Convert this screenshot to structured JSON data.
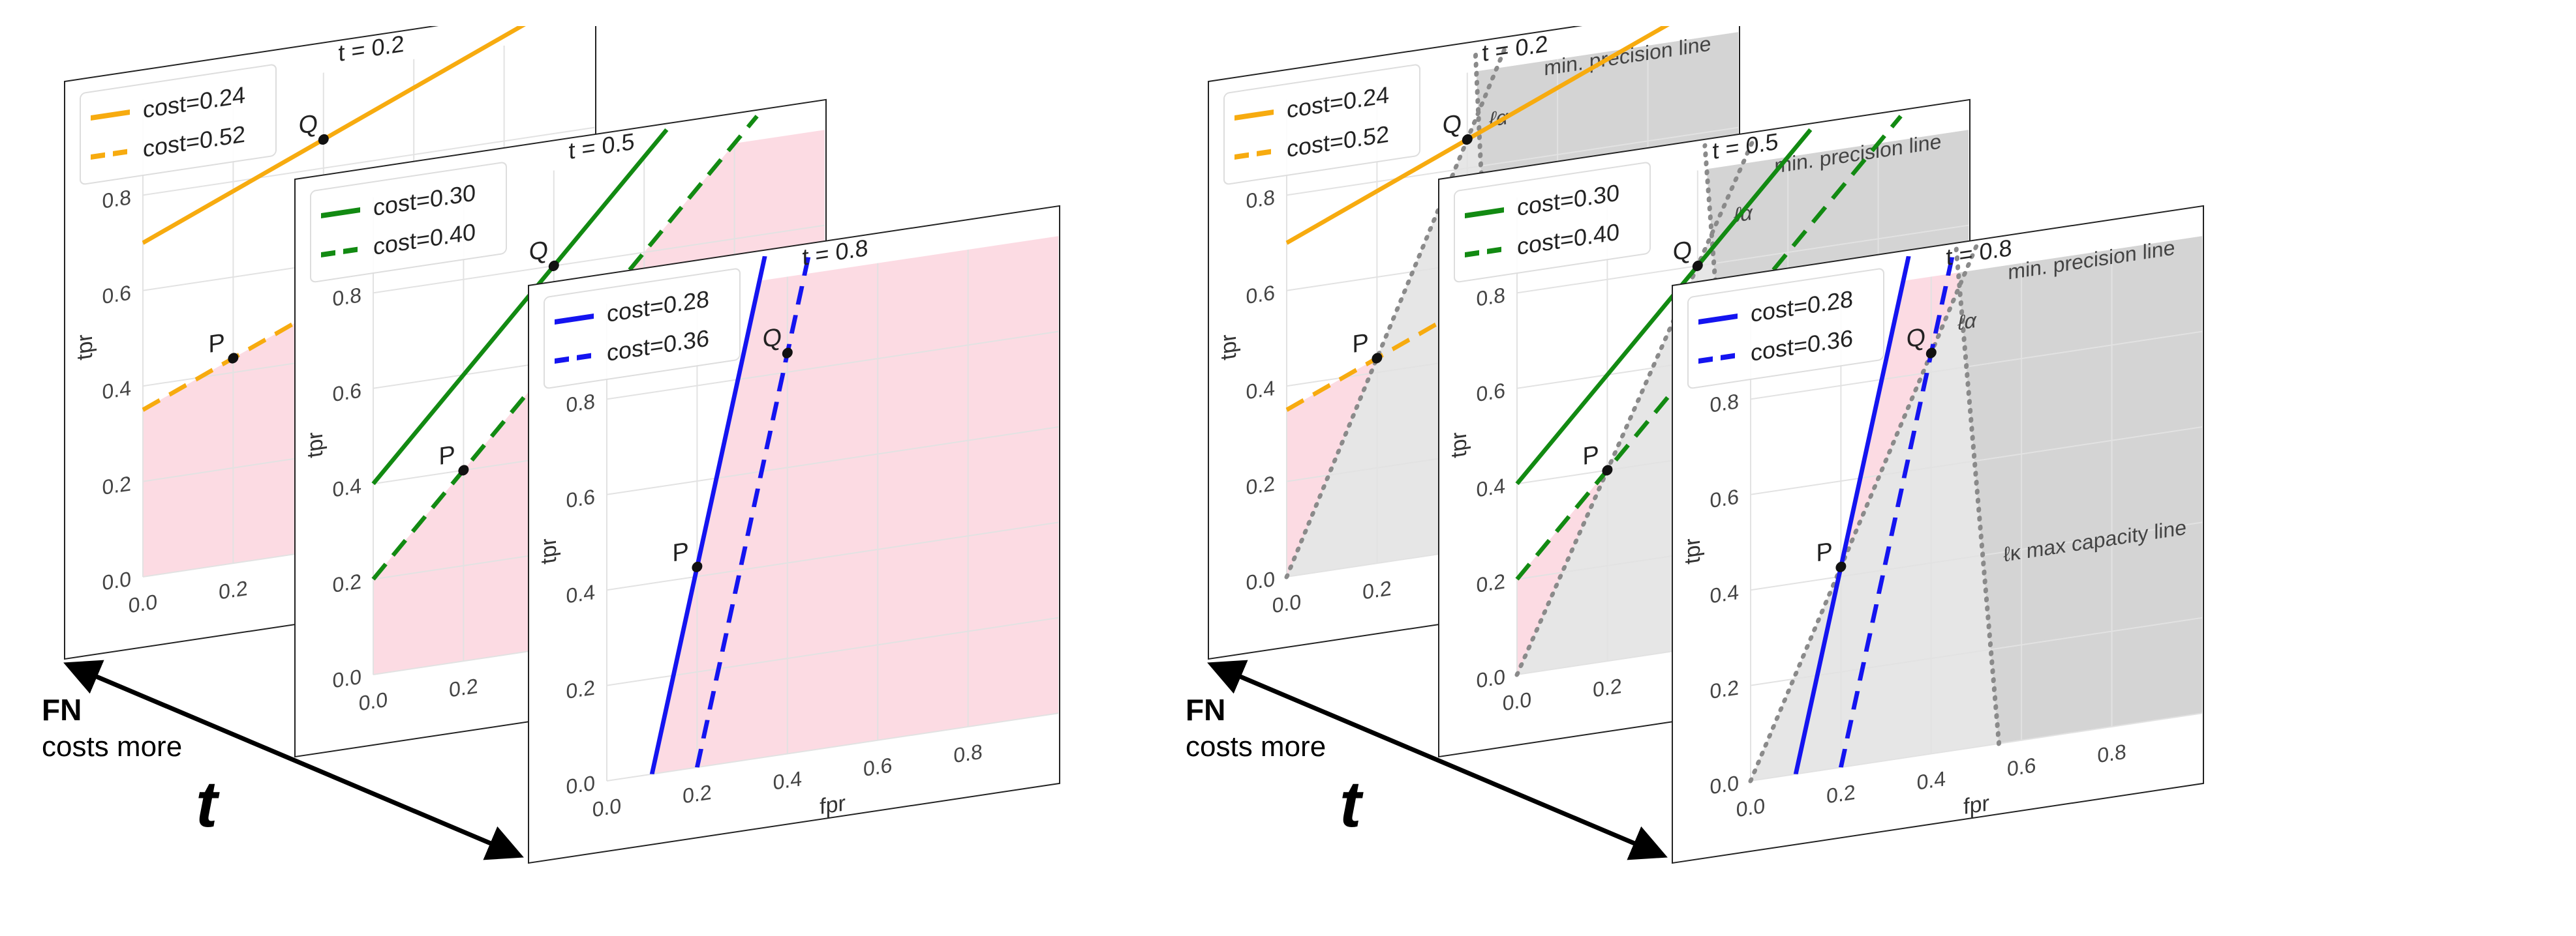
{
  "axis": {
    "xlabel": "fpr",
    "ylabel": "tpr",
    "ticks": [
      "0.0",
      "0.2",
      "0.4",
      "0.6",
      "0.8"
    ],
    "tick_values": [
      0,
      0.2,
      0.4,
      0.6,
      0.8
    ]
  },
  "annotations": {
    "fn": "FN",
    "costs_more": "costs more",
    "t": "t"
  },
  "colors": {
    "pink": "#fcdbe3",
    "gray_light": "#e6e6e6",
    "gray_dark": "#d4d4d4",
    "dotted": "#8a8a8a"
  },
  "figures": [
    {
      "name": "cost-lines",
      "panels": [
        {
          "title": "t = 0.2",
          "color": "#f7ab0f",
          "lines": [
            {
              "label": "cost=0.24",
              "style": "solid",
              "slope": 0.4,
              "intercept": 0.7
            },
            {
              "label": "cost=0.52",
              "style": "dashed",
              "slope": 0.4,
              "intercept": 0.35
            }
          ],
          "feasible_line": 1,
          "points": [
            {
              "label": "P",
              "fpr": 0.2,
              "tpr": 0.43
            },
            {
              "label": "Q",
              "fpr": 0.4,
              "tpr": 0.86
            }
          ]
        },
        {
          "title": "t = 0.5",
          "color": "#128a12",
          "lines": [
            {
              "label": "cost=0.30",
              "style": "solid",
              "slope": 1.0,
              "intercept": 0.4
            },
            {
              "label": "cost=0.40",
              "style": "dashed",
              "slope": 1.0,
              "intercept": 0.2
            }
          ],
          "feasible_line": 1,
          "points": [
            {
              "label": "P",
              "fpr": 0.2,
              "tpr": 0.4
            },
            {
              "label": "Q",
              "fpr": 0.4,
              "tpr": 0.8
            }
          ]
        },
        {
          "title": "t = 0.8",
          "color": "#1414f0",
          "lines": [
            {
              "label": "cost=0.28",
              "style": "solid",
              "slope": 4.2,
              "intercept": -0.42
            },
            {
              "label": "cost=0.36",
              "style": "dashed",
              "slope": 4.2,
              "intercept": -0.84
            }
          ],
          "feasible_line": 0,
          "points": [
            {
              "label": "P",
              "fpr": 0.2,
              "tpr": 0.42
            },
            {
              "label": "Q",
              "fpr": 0.4,
              "tpr": 0.84
            }
          ]
        }
      ]
    },
    {
      "name": "constrained",
      "panels": [
        {
          "title": "t = 0.2",
          "color": "#f7ab0f",
          "lines": [
            {
              "label": "cost=0.24",
              "style": "solid",
              "slope": 0.4,
              "intercept": 0.7
            },
            {
              "label": "cost=0.52",
              "style": "dashed",
              "slope": 0.4,
              "intercept": 0.35
            }
          ],
          "feasible_line": 1,
          "points": [
            {
              "label": "P",
              "fpr": 0.2,
              "tpr": 0.43
            },
            {
              "label": "Q",
              "fpr": 0.4,
              "tpr": 0.86
            }
          ],
          "alpha_slope": 2.15,
          "kappa": [
            0.47,
            0.05
          ],
          "alpha_label": "ℓα",
          "precision_label": "min. precision line"
        },
        {
          "title": "t = 0.5",
          "color": "#128a12",
          "lines": [
            {
              "label": "cost=0.30",
              "style": "solid",
              "slope": 1.0,
              "intercept": 0.4
            },
            {
              "label": "cost=0.40",
              "style": "dashed",
              "slope": 1.0,
              "intercept": 0.2
            }
          ],
          "feasible_line": 1,
          "points": [
            {
              "label": "P",
              "fpr": 0.2,
              "tpr": 0.4
            },
            {
              "label": "Q",
              "fpr": 0.4,
              "tpr": 0.8
            }
          ],
          "alpha_slope": 2.0,
          "kappa": [
            0.5,
            0.08
          ],
          "alpha_label": "ℓα",
          "precision_label": "min. precision line"
        },
        {
          "title": "t = 0.8",
          "color": "#1414f0",
          "lines": [
            {
              "label": "cost=0.28",
              "style": "solid",
              "slope": 4.2,
              "intercept": -0.42
            },
            {
              "label": "cost=0.36",
              "style": "dashed",
              "slope": 4.2,
              "intercept": -0.84
            }
          ],
          "feasible_line": 0,
          "points": [
            {
              "label": "P",
              "fpr": 0.2,
              "tpr": 0.42
            },
            {
              "label": "Q",
              "fpr": 0.4,
              "tpr": 0.84
            }
          ],
          "alpha_slope": 2.1,
          "kappa": [
            0.55,
            0.09
          ],
          "alpha_label": "ℓα",
          "precision_label": "min. precision line",
          "kappa_label": "ℓκ max capacity line"
        }
      ]
    }
  ]
}
